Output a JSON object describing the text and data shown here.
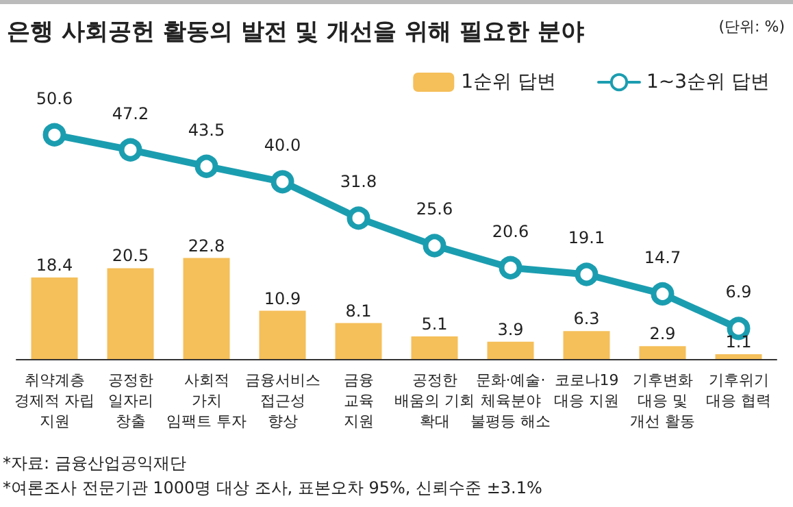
{
  "chart_data": {
    "type": "bar",
    "title": "은행 사회공헌 활동의 발전 및 개선을 위해 필요한 분야",
    "categories": [
      "취약계층\n경제적 자립\n지원",
      "공정한\n일자리\n창출",
      "사회적\n가치\n임팩트 투자",
      "금융서비스\n접근성\n향상",
      "금융\n교육\n지원",
      "공정한\n배움의 기회\n확대",
      "문화·예술·\n체육분야\n불평등 해소",
      "코로나19\n대응 지원",
      "기후변화\n대응 및\n개선 활동",
      "기후위기\n대응 협력"
    ],
    "series": [
      {
        "name": "1순위 답변",
        "color": "#f5bf5a",
        "values": [
          18.4,
          20.5,
          22.8,
          10.9,
          8.1,
          5.1,
          3.9,
          6.3,
          2.9,
          1.1
        ]
      },
      {
        "name": "1~3순위 답변",
        "type": "line",
        "color": "#1b9db0",
        "values": [
          50.6,
          47.2,
          43.5,
          40.0,
          31.8,
          25.6,
          20.6,
          19.1,
          14.7,
          6.9
        ],
        "value_labels": [
          "50.6",
          "47.2",
          "43.5",
          "40.0",
          "31.8",
          "25.6",
          "20.6",
          "19.1",
          "14.7",
          "6.9"
        ]
      }
    ],
    "data_labels": true,
    "marker": "circle",
    "legend": "top right",
    "annotations": [
      "(단위: %)",
      "*자료: 금융산업공익재단",
      "*여론조사 전문기관 1000명 대상 조사, 표본오차 95%, 신뢰수준 ±3.1%"
    ]
  }
}
